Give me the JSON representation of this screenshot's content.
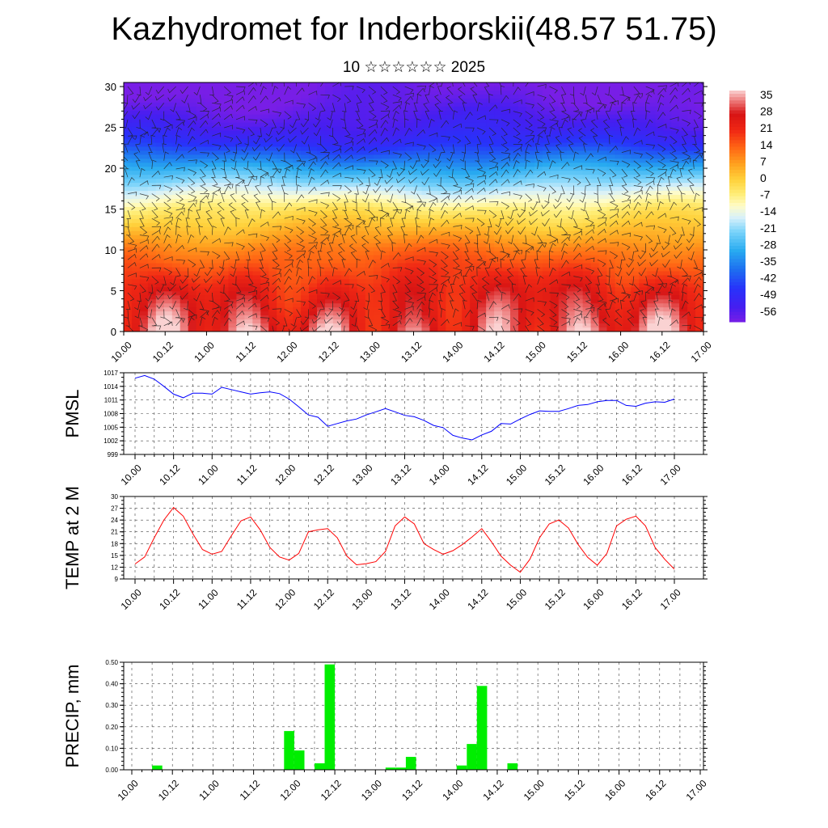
{
  "title": "Kazhydromet for Inderborskii(48.57 51.75)",
  "subtitle": "10 ☆☆☆☆☆☆ 2025",
  "time_ticks": [
    "10.00",
    "10.12",
    "11.00",
    "11.12",
    "12.00",
    "12.12",
    "13.00",
    "13.12",
    "14.00",
    "14.12",
    "15.00",
    "15.12",
    "16.00",
    "16.12",
    "17.00"
  ],
  "colors": {
    "pmsl_line": "#0000ff",
    "temp_line": "#ff0000",
    "precip_bar": "#00ee00"
  },
  "chart_data": [
    {
      "type": "heatmap",
      "description_key": "upper-air temperature cross-section with wind barbs",
      "x_ticks": [
        "10.00",
        "10.12",
        "11.00",
        "11.12",
        "12.00",
        "12.12",
        "13.00",
        "13.12",
        "14.00",
        "14.12",
        "15.00",
        "15.12",
        "16.00",
        "16.12",
        "17.00"
      ],
      "y_ticks": [
        "0",
        "5",
        "10",
        "15",
        "20",
        "25",
        "30"
      ],
      "ylim": [
        0,
        30.5
      ],
      "colorbar_labels": [
        "35",
        "28",
        "21",
        "14",
        "7",
        "0",
        "-7",
        "-14",
        "-21",
        "-28",
        "-35",
        "-42",
        "-49",
        "-56"
      ],
      "colorbar_range": [
        -60,
        38
      ],
      "level_temperature_profile": {
        "levels": [
          0,
          5,
          10,
          15,
          17,
          20,
          23,
          25,
          28,
          30
        ],
        "values": [
          30,
          24,
          12,
          -5,
          -15,
          -30,
          -47,
          -53,
          -58,
          -60
        ]
      }
    },
    {
      "type": "line",
      "ylabel": "PMSL",
      "y_ticks": [
        "1017",
        "1014",
        "1011",
        "1008",
        "1005",
        "1002",
        "999"
      ],
      "ylim": [
        999,
        1017
      ],
      "grid": true,
      "x": [
        0,
        3,
        6,
        9,
        12,
        15,
        18,
        21,
        24,
        27,
        30,
        33,
        36,
        39,
        42,
        45,
        48,
        51,
        54,
        57,
        60,
        63,
        66,
        69,
        72,
        75,
        78,
        81,
        84,
        87,
        90,
        93,
        96,
        99,
        102,
        105,
        108,
        111,
        114,
        117,
        120,
        123,
        126,
        129,
        132,
        135,
        138,
        141,
        144,
        147,
        150,
        153,
        156,
        159,
        162,
        165,
        168
      ],
      "values": [
        1015.8,
        1016.4,
        1015.6,
        1014.0,
        1012.3,
        1011.5,
        1012.5,
        1012.5,
        1012.3,
        1013.8,
        1013.3,
        1012.8,
        1012.3,
        1012.6,
        1012.8,
        1012.4,
        1011.2,
        1009.5,
        1007.7,
        1007.2,
        1005.2,
        1005.8,
        1006.4,
        1006.8,
        1007.7,
        1008.4,
        1009.1,
        1008.4,
        1007.6,
        1007.3,
        1006.5,
        1005.4,
        1004.9,
        1003.2,
        1002.6,
        1002.2,
        1003.3,
        1004.1,
        1005.8,
        1005.7,
        1006.8,
        1007.8,
        1008.6,
        1008.5,
        1008.5,
        1009.1,
        1009.8,
        1010.0,
        1010.6,
        1010.9,
        1010.9,
        1009.8,
        1009.6,
        1010.3,
        1010.6,
        1010.5,
        1011.2
      ]
    },
    {
      "type": "line",
      "ylabel": "TEMP at 2 M",
      "y_ticks": [
        "30",
        "27",
        "24",
        "21",
        "18",
        "15",
        "12",
        "9"
      ],
      "ylim": [
        9,
        30
      ],
      "grid": true,
      "x": [
        0,
        3,
        6,
        9,
        12,
        15,
        18,
        21,
        24,
        27,
        30,
        33,
        36,
        39,
        42,
        45,
        48,
        51,
        54,
        57,
        60,
        63,
        66,
        69,
        72,
        75,
        78,
        81,
        84,
        87,
        90,
        93,
        96,
        99,
        102,
        105,
        108,
        111,
        114,
        117,
        120,
        123,
        126,
        129,
        132,
        135,
        138,
        141,
        144,
        147,
        150,
        153,
        156,
        159,
        162,
        165,
        168
      ],
      "values": [
        12.8,
        14.6,
        19.5,
        24.0,
        27.2,
        25.0,
        20.5,
        16.5,
        15.3,
        16.0,
        20.0,
        23.8,
        24.8,
        21.5,
        17.0,
        14.6,
        13.8,
        15.5,
        21.0,
        21.5,
        21.8,
        19.5,
        14.8,
        12.6,
        12.9,
        13.4,
        16.0,
        22.5,
        24.8,
        23.0,
        18.0,
        16.5,
        15.3,
        16.2,
        17.8,
        19.7,
        21.8,
        18.5,
        14.8,
        12.5,
        10.7,
        14.0,
        19.5,
        23.0,
        24.0,
        22.0,
        17.8,
        14.5,
        12.5,
        15.5,
        22.5,
        24.2,
        25.0,
        22.5,
        17.0,
        14.0,
        11.5
      ]
    },
    {
      "type": "bar",
      "ylabel": "PRECIP, mm",
      "y_ticks": [
        "0.50",
        "0.40",
        "0.30",
        "0.20",
        "0.10",
        "0.00"
      ],
      "ylim": [
        0,
        0.5
      ],
      "grid": true,
      "bar_hours": [
        9,
        48,
        51,
        57,
        60,
        78,
        81,
        84,
        99,
        102,
        105,
        114
      ],
      "values": [
        0.02,
        0.18,
        0.09,
        0.03,
        0.49,
        0.01,
        0.01,
        0.06,
        0.02,
        0.12,
        0.39,
        0.03
      ]
    }
  ]
}
